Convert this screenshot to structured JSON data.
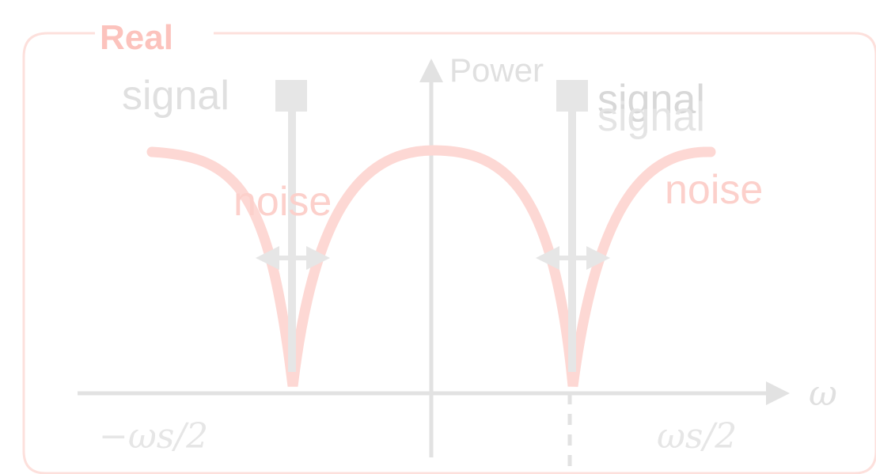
{
  "diagram": {
    "panel_title": "Real",
    "axes": {
      "y_label": "Power",
      "x_label": "ω",
      "x_tick_left": "−ωs/2",
      "x_tick_right": "ωs/2"
    },
    "labels": {
      "signal_left": "signal",
      "signal_right_a": "signal",
      "signal_right_b": "signal",
      "noise_left": "noise",
      "noise_right": "noise"
    },
    "colors": {
      "accent": "#fdd0cc",
      "title": "#fcc3bd",
      "noise_curve": "#fdd8d4",
      "noise_text": "#fcd0cb",
      "axis_gray": "#e2e2e2",
      "signal_gray": "#e6e6e6",
      "text_gray": "#e0e0e0"
    }
  }
}
